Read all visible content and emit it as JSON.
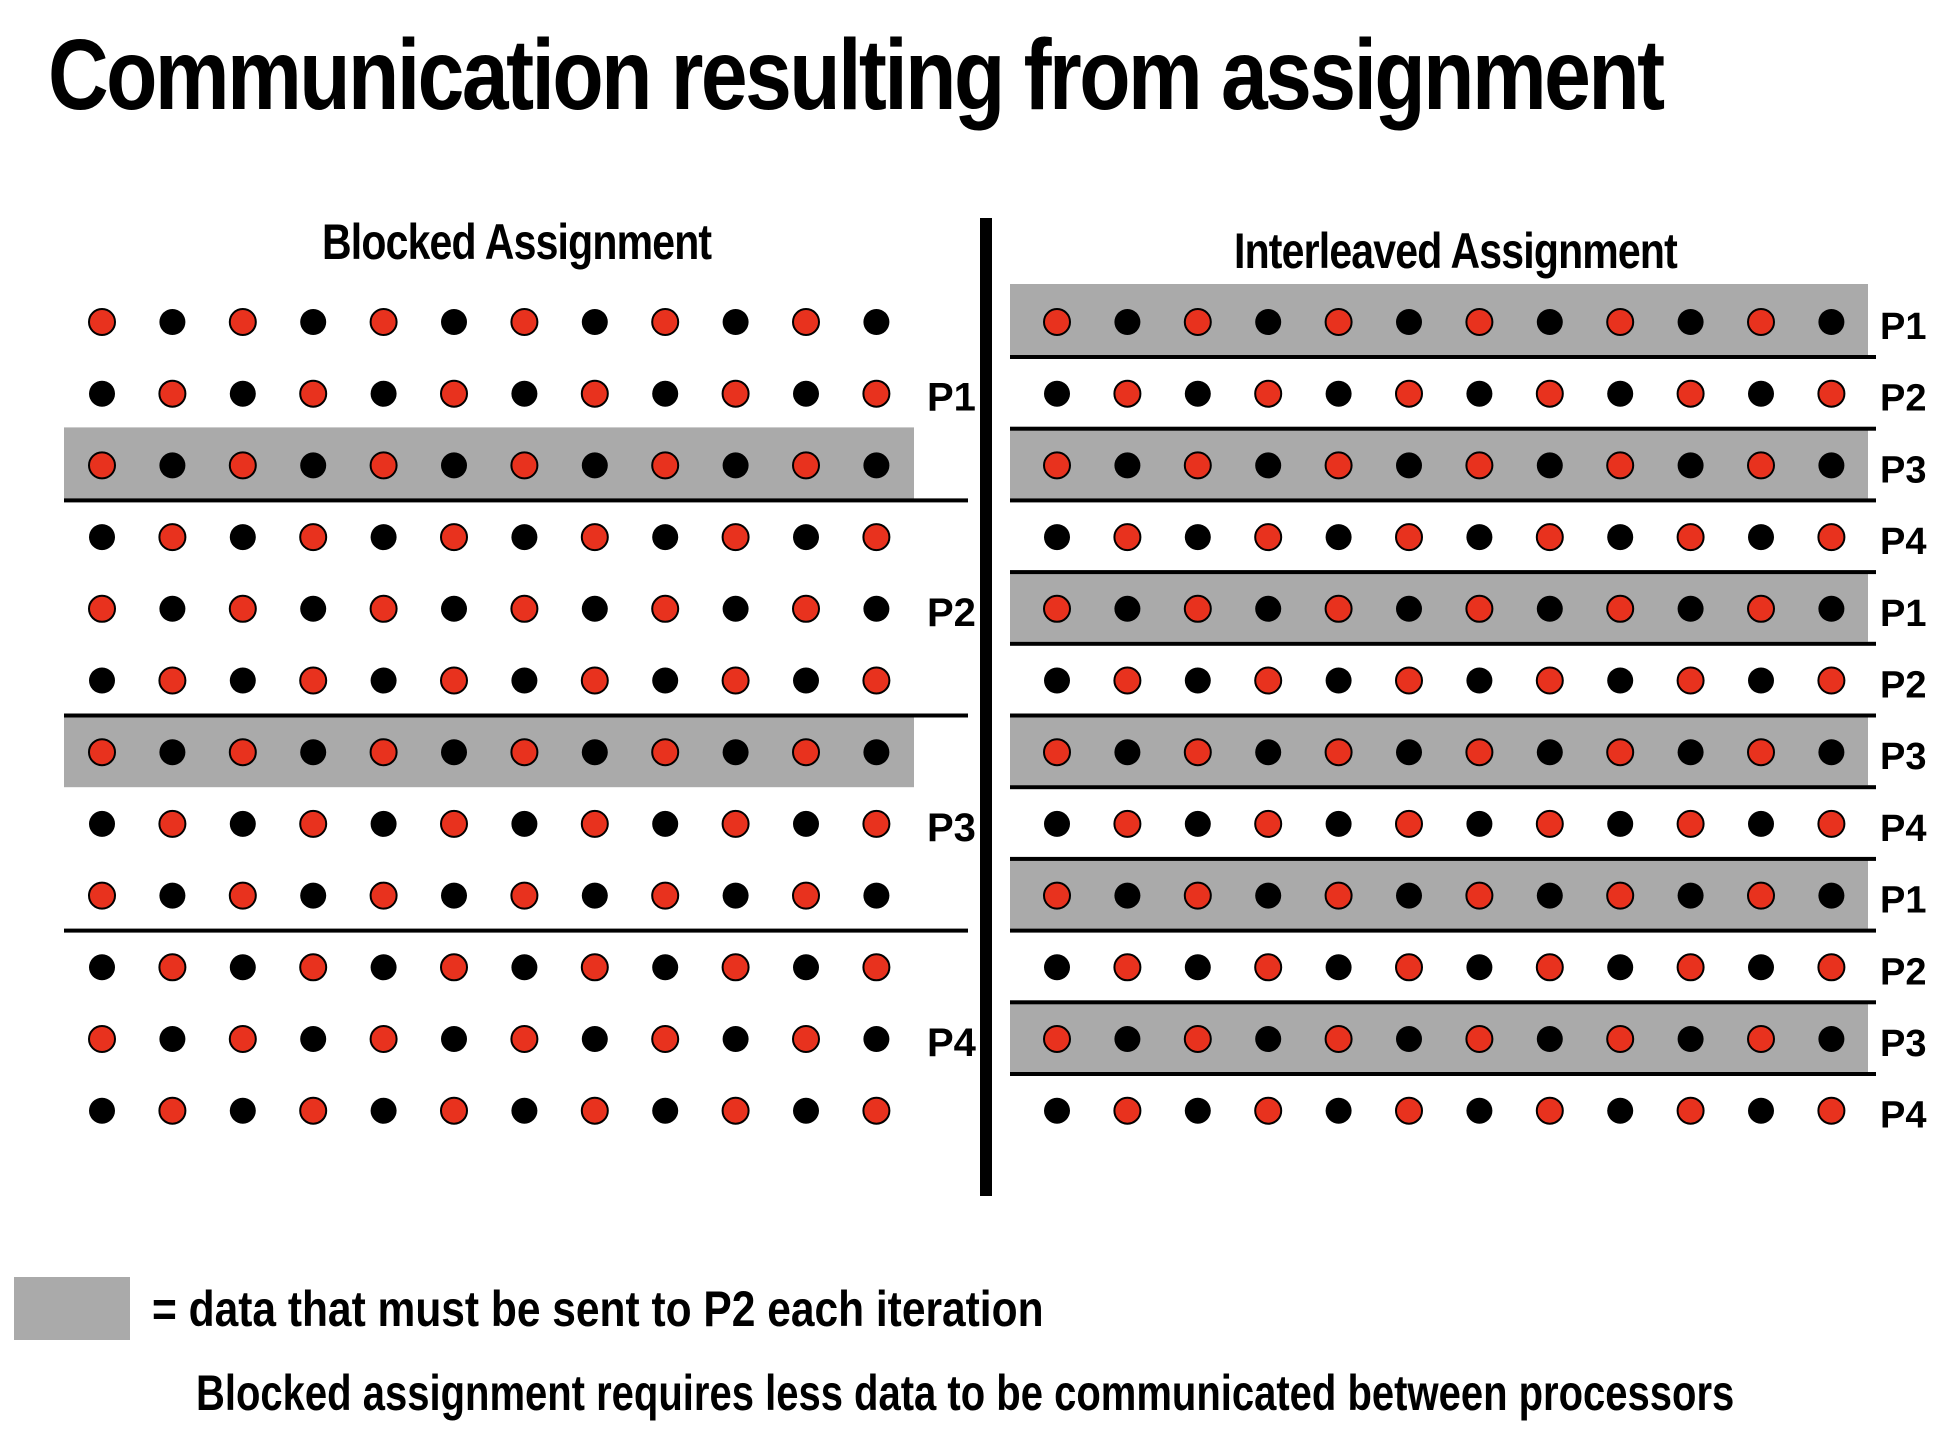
{
  "title": "Communication resulting from assignment",
  "colors": {
    "red": "#e8321e",
    "black": "#000000",
    "highlight": "#aaaaaa",
    "line": "#000000"
  },
  "grid": {
    "rows": 12,
    "cols": 12
  },
  "blocked": {
    "title": "Blocked Assignment",
    "labels": [
      {
        "text": "P1",
        "row": 1
      },
      {
        "text": "P2",
        "row": 4
      },
      {
        "text": "P3",
        "row": 7
      },
      {
        "text": "P4",
        "row": 10
      }
    ],
    "highlight_rows": [
      2,
      6
    ],
    "divider_after_rows": [
      2,
      5,
      8
    ]
  },
  "interleaved": {
    "title": "Interleaved Assignment",
    "labels": [
      "P1",
      "P2",
      "P3",
      "P4",
      "P1",
      "P2",
      "P3",
      "P4",
      "P1",
      "P2",
      "P3",
      "P4"
    ],
    "highlight_rows": [
      0,
      2,
      4,
      6,
      8,
      10
    ]
  },
  "legend": {
    "text": "= data that must be sent to P2 each iteration"
  },
  "conclusion": "Blocked assignment requires less data to be communicated between processors"
}
